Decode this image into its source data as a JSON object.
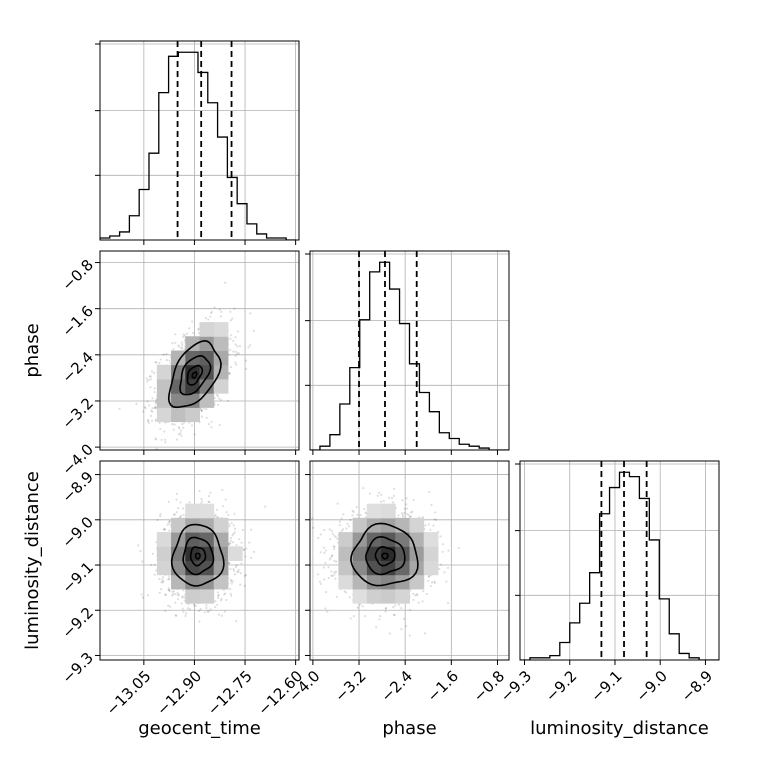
{
  "chart_data": {
    "type": "corner",
    "parameters": [
      "geocent_time",
      "phase",
      "luminosity_distance"
    ],
    "grid": true,
    "x_tick_labels": {
      "geocent_time": [
        "−13.05",
        "−12.90",
        "−12.75",
        "−12.60"
      ],
      "phase": [
        "−4.0",
        "−3.2",
        "−2.4",
        "−1.6",
        "−0.8"
      ],
      "luminosity_distance": [
        "−9.3",
        "−9.2",
        "−9.1",
        "−9.0",
        "−8.9"
      ]
    },
    "y_tick_labels": {
      "phase": [
        "−0.8",
        "−1.6",
        "−2.4",
        "−3.2",
        "−4.0"
      ],
      "luminosity_distance": [
        "−8.9",
        "−9.0",
        "−9.1",
        "−9.2",
        "−9.3"
      ]
    },
    "ranges": {
      "geocent_time": [
        -13.18,
        -12.59
      ],
      "phase": [
        -4.05,
        -0.6
      ],
      "luminosity_distance": [
        -9.31,
        -8.87
      ]
    },
    "quantiles": {
      "geocent_time": [
        -12.95,
        -12.88,
        -12.79
      ],
      "phase": [
        -3.2,
        -2.75,
        -2.2
      ],
      "luminosity_distance": [
        -9.13,
        -9.08,
        -9.03
      ]
    },
    "histograms": {
      "geocent_time": {
        "bin_start": -13.18,
        "bin_width": 0.02905,
        "counts": [
          1,
          2,
          4,
          12,
          25,
          43,
          73,
          91,
          93,
          93,
          83,
          68,
          51,
          31,
          18,
          8,
          3,
          1,
          1,
          0
        ]
      },
      "phase": {
        "bin_start": -4.05,
        "bin_width": 0.1725,
        "counts": [
          0,
          2,
          8,
          24,
          43,
          68,
          93,
          98,
          84,
          66,
          45,
          30,
          20,
          9,
          6,
          3,
          2,
          1,
          0,
          0
        ]
      },
      "luminosity_distance": {
        "bin_start": -9.31,
        "bin_width": 0.022,
        "counts": [
          0,
          1,
          1,
          2,
          8,
          17,
          26,
          40,
          67,
          79,
          86,
          84,
          74,
          55,
          28,
          12,
          3,
          1,
          0,
          0
        ]
      }
    },
    "joint": [
      {
        "x": "geocent_time",
        "y": "phase",
        "mean": [
          -12.9,
          -2.75
        ],
        "sd": [
          0.055,
          0.42
        ],
        "corr": 0.45
      },
      {
        "x": "geocent_time",
        "y": "luminosity_distance",
        "mean": [
          -12.89,
          -9.08
        ],
        "sd": [
          0.055,
          0.05
        ],
        "corr": 0.0
      },
      {
        "x": "phase",
        "y": "luminosity_distance",
        "mean": [
          -2.75,
          -9.08
        ],
        "sd": [
          0.42,
          0.05
        ],
        "corr": 0.0
      }
    ]
  }
}
